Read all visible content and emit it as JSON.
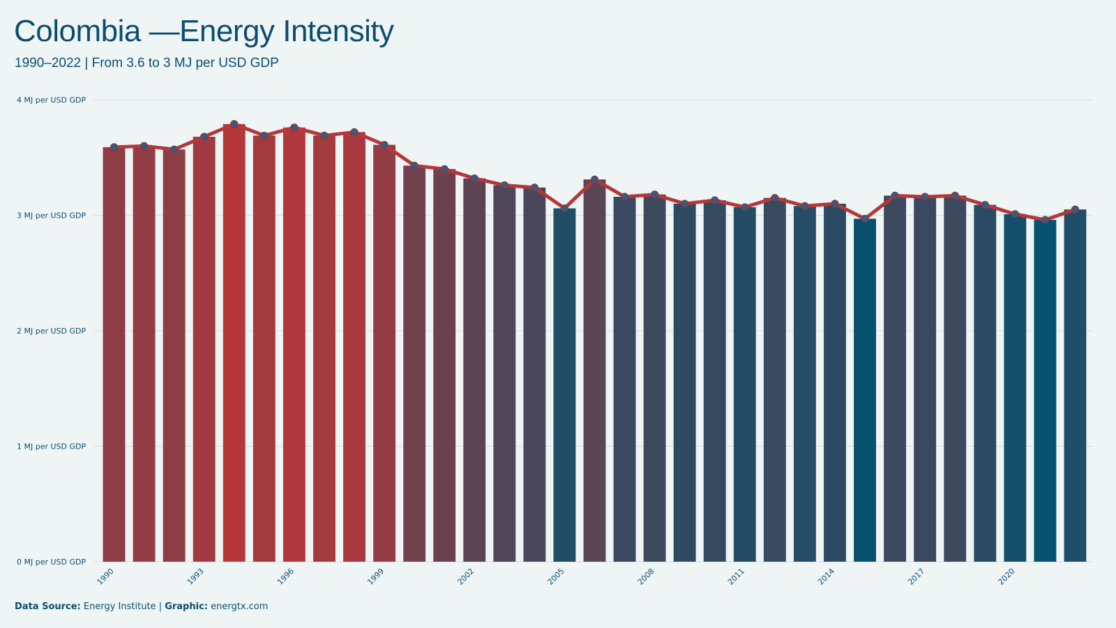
{
  "header": {
    "title": "Colombia —Energy Intensity",
    "subtitle": "1990–2022 | From 3.6 to 3 MJ per USD GDP"
  },
  "footer": {
    "source_label": "Data Source:",
    "source_value": "Energy Institute |",
    "graphic_label": "Graphic:",
    "graphic_value": "energtx.com"
  },
  "colors": {
    "background": "#eff5f5",
    "high": "#b5373a",
    "low": "#05516f",
    "line": "#b5373a",
    "marker": "#3e5a7a",
    "grid": "#d8dede"
  },
  "chart_data": {
    "type": "bar",
    "x": [
      1990,
      1991,
      1992,
      1993,
      1994,
      1995,
      1996,
      1997,
      1998,
      1999,
      2000,
      2001,
      2002,
      2003,
      2004,
      2005,
      2006,
      2007,
      2008,
      2009,
      2010,
      2011,
      2012,
      2013,
      2014,
      2015,
      2016,
      2017,
      2018,
      2019,
      2020,
      2021,
      2022
    ],
    "values": [
      3.59,
      3.6,
      3.57,
      3.68,
      3.79,
      3.69,
      3.76,
      3.69,
      3.72,
      3.61,
      3.43,
      3.4,
      3.32,
      3.26,
      3.24,
      3.06,
      3.31,
      3.16,
      3.18,
      3.1,
      3.13,
      3.07,
      3.15,
      3.08,
      3.1,
      2.97,
      3.17,
      3.16,
      3.17,
      3.09,
      3.01,
      2.96,
      3.05
    ],
    "series": [
      {
        "type": "bar",
        "values": [
          3.59,
          3.6,
          3.57,
          3.68,
          3.79,
          3.69,
          3.76,
          3.69,
          3.72,
          3.61,
          3.43,
          3.4,
          3.32,
          3.26,
          3.24,
          3.06,
          3.31,
          3.16,
          3.18,
          3.1,
          3.13,
          3.07,
          3.15,
          3.08,
          3.1,
          2.97,
          3.17,
          3.16,
          3.17,
          3.09,
          3.01,
          2.96,
          3.05
        ]
      },
      {
        "type": "line",
        "values": [
          3.59,
          3.6,
          3.57,
          3.68,
          3.79,
          3.69,
          3.76,
          3.69,
          3.72,
          3.61,
          3.43,
          3.4,
          3.32,
          3.26,
          3.24,
          3.06,
          3.31,
          3.16,
          3.18,
          3.1,
          3.13,
          3.07,
          3.15,
          3.08,
          3.1,
          2.97,
          3.17,
          3.16,
          3.17,
          3.09,
          3.01,
          2.96,
          3.05
        ]
      }
    ],
    "x_tick_labels": [
      "1990",
      "1993",
      "1996",
      "1999",
      "2002",
      "2005",
      "2008",
      "2011",
      "2014",
      "2017",
      "2020"
    ],
    "y_tick_labels": [
      "0 MJ per USD GDP",
      "1 MJ per USD GDP",
      "2 MJ per USD GDP",
      "3 MJ per USD GDP",
      "4 MJ per USD GDP"
    ],
    "y_ticks": [
      0,
      1,
      2,
      3,
      4
    ],
    "ylim": [
      0,
      4
    ],
    "grid": "horizontal",
    "legend": "none"
  }
}
